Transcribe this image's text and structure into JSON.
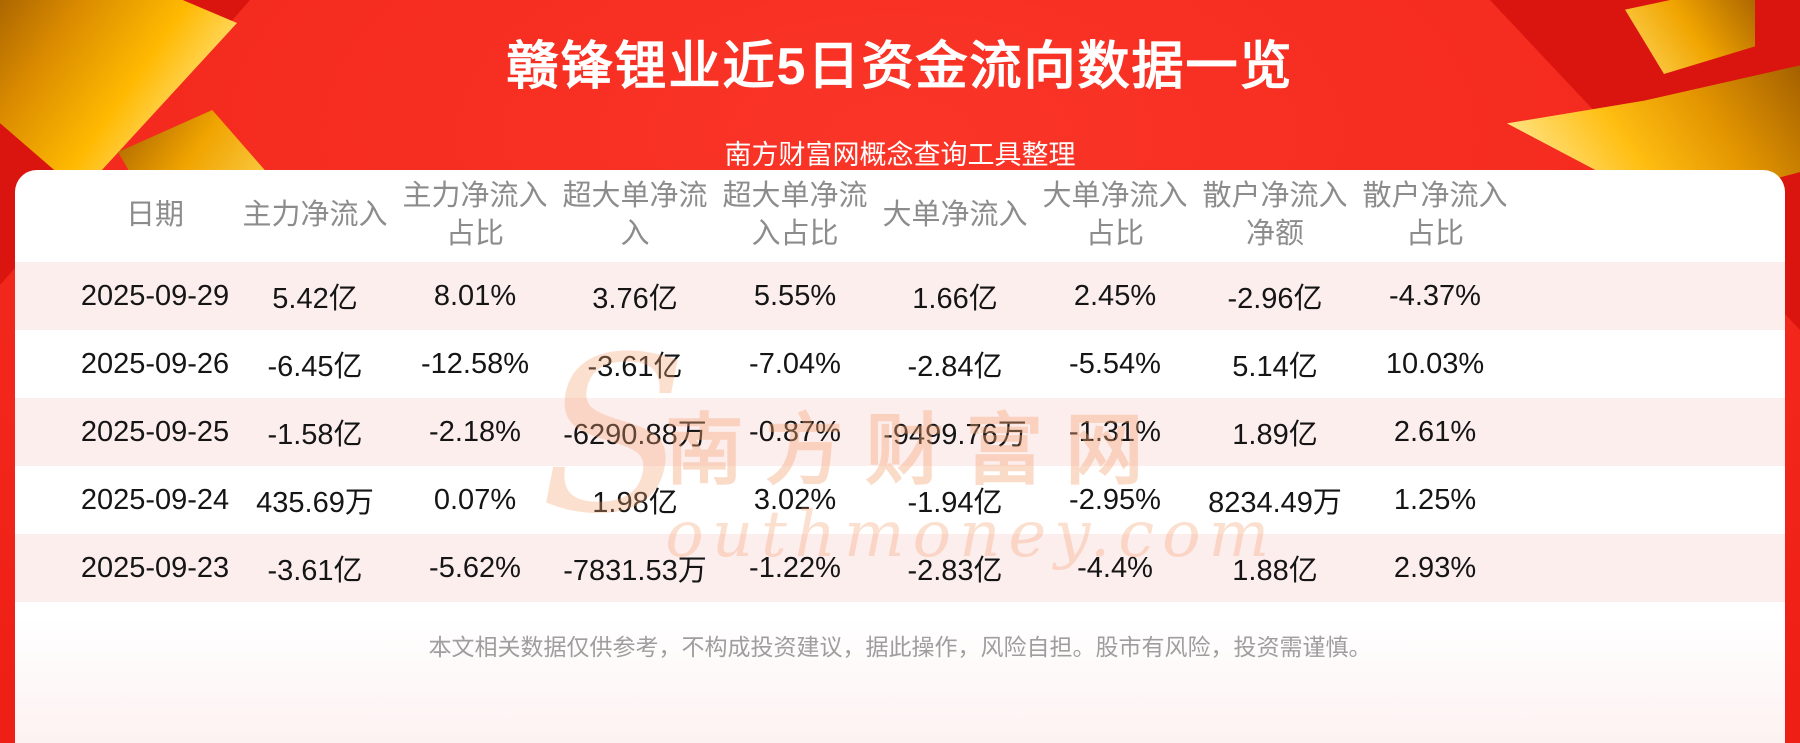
{
  "header": {
    "title": "赣锋锂业近5日资金流向数据一览",
    "subtitle": "南方财富网概念查询工具整理"
  },
  "watermark": {
    "initial": "S",
    "cn": "南方财富网",
    "rest": "outhmoney.com"
  },
  "chart_data": {
    "type": "table",
    "title": "赣锋锂业近5日资金流向数据一览",
    "columns": [
      "日期",
      "主力净流入",
      "主力净流入占比",
      "超大单净流入",
      "超大单净流入占比",
      "大单净流入",
      "大单净流入占比",
      "散户净流入净额",
      "散户净流入占比"
    ],
    "rows": [
      [
        "2025-09-29",
        "5.42亿",
        "8.01%",
        "3.76亿",
        "5.55%",
        "1.66亿",
        "2.45%",
        "-2.96亿",
        "-4.37%"
      ],
      [
        "2025-09-26",
        "-6.45亿",
        "-12.58%",
        "-3.61亿",
        "-7.04%",
        "-2.84亿",
        "-5.54%",
        "5.14亿",
        "10.03%"
      ],
      [
        "2025-09-25",
        "-1.58亿",
        "-2.18%",
        "-6290.88万",
        "-0.87%",
        "-9499.76万",
        "-1.31%",
        "1.89亿",
        "2.61%"
      ],
      [
        "2025-09-24",
        "435.69万",
        "0.07%",
        "1.98亿",
        "3.02%",
        "-1.94亿",
        "-2.95%",
        "8234.49万",
        "1.25%"
      ],
      [
        "2025-09-23",
        "-3.61亿",
        "-5.62%",
        "-7831.53万",
        "-1.22%",
        "-2.83亿",
        "-4.4%",
        "1.88亿",
        "2.93%"
      ]
    ]
  },
  "footer": {
    "disclaimer": "本文相关数据仅供参考，不构成投资建议，据此操作，风险自担。股市有风险，投资需谨慎。"
  },
  "colors": {
    "background_red": "#ee1f15",
    "ribbon_red": "#da140e",
    "gold_accent": "#ffb901",
    "row_pink": "#fdeeee",
    "header_text": "#8c8c8c",
    "body_text": "#151515",
    "watermark_orange": "#f3a576",
    "title_white": "#ffffff",
    "disclaimer_gray": "#9e9e9e"
  }
}
